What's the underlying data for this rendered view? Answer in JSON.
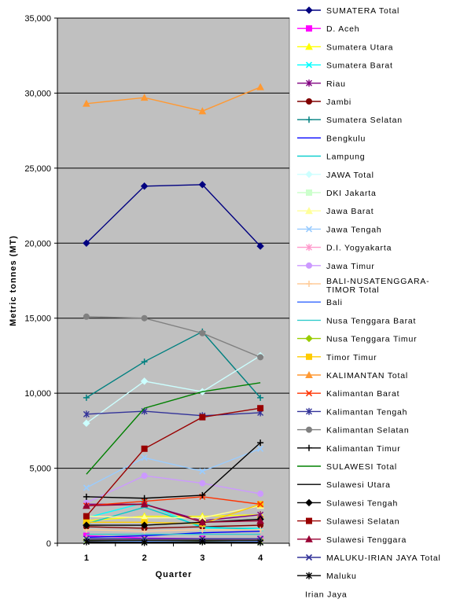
{
  "chart_data": {
    "type": "line",
    "xlabel": "Quarter",
    "ylabel": "Metric tonnes (MT)",
    "x": [
      "1",
      "2",
      "3",
      "4"
    ],
    "ylim": [
      0,
      35000
    ],
    "yticks": [
      "0",
      "5,000",
      "10,000",
      "15,000",
      "20,000",
      "25,000",
      "30,000",
      "35,000"
    ],
    "yticks_values": [
      0,
      5000,
      10000,
      15000,
      20000,
      25000,
      30000,
      35000
    ],
    "grid": true,
    "plot_background": "#c0c0c0",
    "legend_position": "right",
    "series": [
      {
        "name": "SUMATERA Total",
        "color": "#000080",
        "marker": "diamond",
        "values": [
          20000,
          23800,
          23900,
          19800
        ]
      },
      {
        "name": "D. Aceh",
        "color": "#ff00ff",
        "marker": "square",
        "values": [
          500,
          350,
          300,
          280
        ]
      },
      {
        "name": "Sumatera Utara",
        "color": "#ffff00",
        "marker": "triangle",
        "values": [
          1500,
          1800,
          1800,
          1900
        ]
      },
      {
        "name": "Sumatera Barat",
        "color": "#00ffff",
        "marker": "x",
        "values": [
          1700,
          2700,
          1000,
          1000
        ]
      },
      {
        "name": "Riau",
        "color": "#800080",
        "marker": "star",
        "values": [
          2600,
          2600,
          1500,
          1900
        ]
      },
      {
        "name": "Jambi",
        "color": "#800000",
        "marker": "circle",
        "values": [
          1100,
          1000,
          1100,
          1200
        ]
      },
      {
        "name": "Sumatera Selatan",
        "color": "#008080",
        "marker": "plus",
        "values": [
          9700,
          12100,
          14100,
          9700
        ]
      },
      {
        "name": "Bengkulu",
        "color": "#0000ff",
        "marker": "none",
        "values": [
          400,
          500,
          700,
          800
        ]
      },
      {
        "name": "Lampung",
        "color": "#00cccc",
        "marker": "none",
        "values": [
          1300,
          2400,
          1100,
          900
        ]
      },
      {
        "name": "JAWA Total",
        "color": "#ccffff",
        "marker": "diamond",
        "values": [
          8000,
          10800,
          10100,
          12500
        ]
      },
      {
        "name": "DKI Jakarta",
        "color": "#ccffcc",
        "marker": "square",
        "values": [
          200,
          150,
          150,
          100
        ]
      },
      {
        "name": "Jawa Barat",
        "color": "#ffff99",
        "marker": "triangle",
        "values": [
          1800,
          1700,
          1700,
          2500
        ]
      },
      {
        "name": "Jawa Tengah",
        "color": "#99ccff",
        "marker": "x",
        "values": [
          3700,
          5700,
          4800,
          6300
        ]
      },
      {
        "name": "D.I. Yogyakarta",
        "color": "#ff99cc",
        "marker": "star",
        "values": [
          300,
          250,
          200,
          250
        ]
      },
      {
        "name": "Jawa Timur",
        "color": "#cc99ff",
        "marker": "circle",
        "values": [
          2700,
          4500,
          4000,
          3300
        ]
      },
      {
        "name": "BALI-NUSATENGGARA-TIMOR Total",
        "color": "#ffcc99",
        "marker": "plus",
        "values": [
          900,
          800,
          900,
          900
        ]
      },
      {
        "name": "Bali",
        "color": "#3366ff",
        "marker": "none",
        "values": [
          100,
          100,
          100,
          100
        ]
      },
      {
        "name": "Nusa Tenggara Barat",
        "color": "#33cccc",
        "marker": "none",
        "values": [
          600,
          600,
          600,
          600
        ]
      },
      {
        "name": "Nusa Tenggara Timur",
        "color": "#99cc00",
        "marker": "diamond",
        "values": [
          200,
          200,
          200,
          200
        ]
      },
      {
        "name": "Timor Timur",
        "color": "#ffcc00",
        "marker": "square",
        "values": [
          1400,
          1400,
          1300,
          2600
        ]
      },
      {
        "name": "KALIMANTAN Total",
        "color": "#ff9933",
        "marker": "triangle",
        "values": [
          29300,
          29700,
          28800,
          30400
        ]
      },
      {
        "name": "Kalimantan Barat",
        "color": "#ff3300",
        "marker": "x",
        "values": [
          2500,
          2800,
          3100,
          2600
        ]
      },
      {
        "name": "Kalimantan Tengah",
        "color": "#333399",
        "marker": "star",
        "values": [
          8600,
          8800,
          8500,
          8700
        ]
      },
      {
        "name": "Kalimantan Selatan",
        "color": "#808080",
        "marker": "circle",
        "values": [
          15100,
          15000,
          14000,
          12400
        ]
      },
      {
        "name": "Kalimantan Timur",
        "color": "#000000",
        "marker": "plus",
        "values": [
          3100,
          3000,
          3200,
          6700
        ]
      },
      {
        "name": "SULAWESI Total",
        "color": "#008000",
        "marker": "none",
        "values": [
          4600,
          9000,
          10100,
          10700
        ]
      },
      {
        "name": "Sulawesi Utara",
        "color": "#000000",
        "marker": "none",
        "values": [
          200,
          200,
          200,
          200
        ]
      },
      {
        "name": "Sulawesi Tengah",
        "color": "#000000",
        "marker": "diamond",
        "values": [
          1200,
          1200,
          1400,
          1600
        ]
      },
      {
        "name": "Sulawesi Selatan",
        "color": "#990000",
        "marker": "square",
        "values": [
          1800,
          6300,
          8400,
          9000
        ]
      },
      {
        "name": "Sulawesi Tenggara",
        "color": "#990033",
        "marker": "triangle",
        "values": [
          2500,
          2600,
          1400,
          1500
        ]
      },
      {
        "name": "MALUKU-IRIAN JAYA Total",
        "color": "#333399",
        "marker": "x",
        "values": [
          300,
          300,
          300,
          300
        ]
      },
      {
        "name": "Maluku",
        "color": "#000000",
        "marker": "star",
        "values": [
          100,
          50,
          100,
          50
        ]
      },
      {
        "name": "Irian Jaya",
        "color": "#000000",
        "marker": "none",
        "values": [
          50,
          50,
          50,
          50
        ]
      }
    ]
  }
}
